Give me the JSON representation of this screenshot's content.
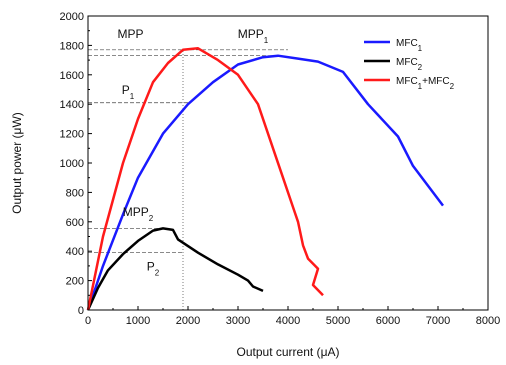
{
  "chart_data": {
    "type": "line",
    "xlabel": {
      "text": "Output current (",
      "unit": "μA",
      "close": ")"
    },
    "ylabel": {
      "text": "Output power (",
      "unit": "μW",
      "close": ")"
    },
    "xlim": [
      0,
      8000
    ],
    "ylim": [
      0,
      2000
    ],
    "xticks": [
      "0",
      "1000",
      "2000",
      "3000",
      "4000",
      "5000",
      "6000",
      "7000",
      "8000"
    ],
    "yticks": [
      "0",
      "200",
      "400",
      "600",
      "800",
      "1000",
      "1200",
      "1400",
      "1600",
      "1800",
      "2000"
    ],
    "legend_position": "top-right",
    "series": [
      {
        "base": "MFC",
        "sub": "1",
        "suffix_base": "",
        "suffix_sub": "",
        "color": "#1a1aff",
        "points": [
          [
            0,
            0
          ],
          [
            300,
            300
          ],
          [
            700,
            650
          ],
          [
            1000,
            900
          ],
          [
            1500,
            1200
          ],
          [
            2000,
            1400
          ],
          [
            2500,
            1550
          ],
          [
            3000,
            1670
          ],
          [
            3500,
            1720
          ],
          [
            3800,
            1730
          ],
          [
            4200,
            1710
          ],
          [
            4600,
            1690
          ],
          [
            5100,
            1620
          ],
          [
            5600,
            1400
          ],
          [
            6200,
            1180
          ],
          [
            6500,
            980
          ],
          [
            7100,
            710
          ]
        ]
      },
      {
        "base": "MFC",
        "sub": "2",
        "suffix_base": "",
        "suffix_sub": "",
        "color": "#000000",
        "points": [
          [
            0,
            0
          ],
          [
            200,
            150
          ],
          [
            400,
            270
          ],
          [
            700,
            380
          ],
          [
            1000,
            470
          ],
          [
            1300,
            540
          ],
          [
            1500,
            555
          ],
          [
            1700,
            545
          ],
          [
            1800,
            480
          ],
          [
            2200,
            390
          ],
          [
            2600,
            310
          ],
          [
            3000,
            240
          ],
          [
            3200,
            200
          ],
          [
            3300,
            160
          ],
          [
            3500,
            130
          ]
        ]
      },
      {
        "base": "MFC",
        "sub": "1",
        "suffix_base": "+MFC",
        "suffix_sub": "2",
        "color": "#ff1a1a",
        "points": [
          [
            0,
            0
          ],
          [
            300,
            500
          ],
          [
            700,
            1000
          ],
          [
            1000,
            1300
          ],
          [
            1300,
            1550
          ],
          [
            1600,
            1680
          ],
          [
            1900,
            1770
          ],
          [
            2200,
            1780
          ],
          [
            2600,
            1700
          ],
          [
            3000,
            1600
          ],
          [
            3400,
            1400
          ],
          [
            3700,
            1100
          ],
          [
            3900,
            900
          ],
          [
            4100,
            700
          ],
          [
            4200,
            600
          ],
          [
            4300,
            440
          ],
          [
            4400,
            350
          ],
          [
            4600,
            280
          ],
          [
            4500,
            170
          ],
          [
            4700,
            100
          ]
        ]
      }
    ],
    "annotations": [
      {
        "base": "MPP",
        "sub": "",
        "x": 850,
        "y": 1850
      },
      {
        "base": "MPP",
        "sub": "1",
        "x": 3300,
        "y": 1850
      },
      {
        "base": "P",
        "sub": "1",
        "x": 800,
        "y": 1470
      },
      {
        "base": "MPP",
        "sub": "2",
        "x": 1000,
        "y": 640
      },
      {
        "base": "P",
        "sub": "2",
        "x": 1300,
        "y": 270
      }
    ],
    "reference_lines": [
      {
        "y": 1770,
        "x_end": 4000,
        "style": "dashed"
      },
      {
        "y": 1730,
        "x_end": 3800,
        "style": "dashed"
      },
      {
        "y": 1410,
        "x_end": 2000,
        "style": "dashed"
      },
      {
        "y": 555,
        "x_end": 1500,
        "style": "dashed"
      },
      {
        "y": 390,
        "x_end": 1900,
        "style": "dashed"
      },
      {
        "x": 1900,
        "y_end": 1770,
        "style": "dotted"
      }
    ]
  }
}
